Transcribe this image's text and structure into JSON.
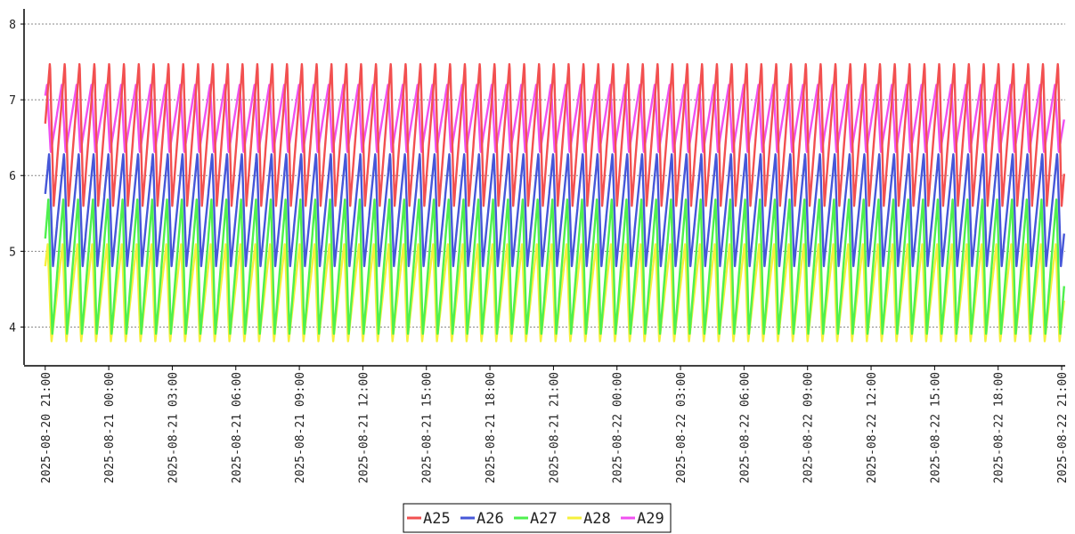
{
  "chart_data": {
    "type": "line",
    "title": "",
    "xlabel": "",
    "ylabel": "",
    "x_range": [
      "2025-08-20 20:00",
      "2025-08-22 21:10"
    ],
    "ylim": [
      3.5,
      8.2
    ],
    "y_ticks": [
      {
        "value": 4,
        "label": "4"
      },
      {
        "value": 5,
        "label": "5"
      },
      {
        "value": 6,
        "label": "6"
      },
      {
        "value": 7,
        "label": "7"
      },
      {
        "value": 8,
        "label": "8"
      }
    ],
    "x_ticks": [
      "2025-08-20 21:00",
      "2025-08-21 00:00",
      "2025-08-21 03:00",
      "2025-08-21 06:00",
      "2025-08-21 09:00",
      "2025-08-21 12:00",
      "2025-08-21 15:00",
      "2025-08-21 18:00",
      "2025-08-21 21:00",
      "2025-08-22 00:00",
      "2025-08-22 03:00",
      "2025-08-22 06:00",
      "2025-08-22 09:00",
      "2025-08-22 12:00",
      "2025-08-22 15:00",
      "2025-08-22 18:00",
      "2025-08-22 21:00"
    ],
    "grid": {
      "horizontal": true,
      "vertical": false,
      "style": "dotted"
    },
    "legend_position": "bottom-center",
    "series": [
      {
        "name": "A25",
        "color": "#f25050",
        "cycle_hours": 0.7,
        "range": [
          5.6,
          7.5
        ]
      },
      {
        "name": "A26",
        "color": "#4657d8",
        "cycle_hours": 0.7,
        "range": [
          4.8,
          6.3
        ]
      },
      {
        "name": "A27",
        "color": "#4ef04e",
        "cycle_hours": 0.7,
        "range": [
          3.9,
          5.7
        ]
      },
      {
        "name": "A28",
        "color": "#f6f03c",
        "cycle_hours": 0.7,
        "range": [
          3.8,
          5.1
        ]
      },
      {
        "name": "A29",
        "color": "#f050f0",
        "cycle_hours": 0.7,
        "range": [
          6.3,
          7.2
        ]
      }
    ]
  }
}
